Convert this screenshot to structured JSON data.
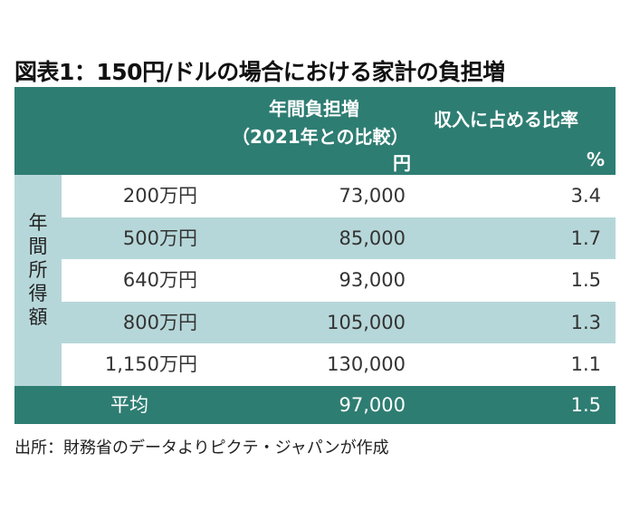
{
  "title": "図表1：150円/ドルの場合における家計の負担増",
  "header": {
    "col1_line1": "年間負担増",
    "col1_line2": "（2021年との比較）",
    "col1_unit": "円",
    "col2_line1": "収入に占める比率",
    "col2_unit": "%"
  },
  "row_group_label": [
    "年",
    "間",
    "所",
    "得",
    "額"
  ],
  "rows": [
    {
      "income": "200万円",
      "burden": "73,000",
      "ratio": "3.4"
    },
    {
      "income": "500万円",
      "burden": "85,000",
      "ratio": "1.7"
    },
    {
      "income": "640万円",
      "burden": "93,000",
      "ratio": "1.5"
    },
    {
      "income": "800万円",
      "burden": "105,000",
      "ratio": "1.3"
    },
    {
      "income": "1,150万円",
      "burden": "130,000",
      "ratio": "1.1"
    }
  ],
  "average": {
    "label": "平均",
    "burden": "97,000",
    "ratio": "1.5"
  },
  "source": "出所：財務省のデータよりピクテ・ジャパンが作成",
  "colors": {
    "header_bg": "#2e7d72",
    "shaded_row": "#b6d7d9",
    "header_text": "#ffffff"
  },
  "chart_data": {
    "type": "table",
    "title": "図表1：150円/ドルの場合における家計の負担増",
    "columns": [
      "年間所得額",
      "年間負担増（2021年との比較）円",
      "収入に占める比率 %"
    ],
    "rows": [
      [
        "200万円",
        73000,
        3.4
      ],
      [
        "500万円",
        85000,
        1.7
      ],
      [
        "640万円",
        93000,
        1.5
      ],
      [
        "800万円",
        105000,
        1.3
      ],
      [
        "1,150万円",
        130000,
        1.1
      ],
      [
        "平均",
        97000,
        1.5
      ]
    ]
  }
}
